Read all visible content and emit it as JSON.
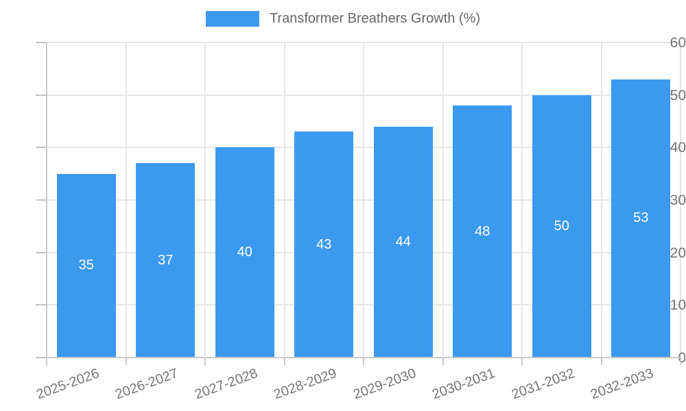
{
  "chart_data": {
    "type": "bar",
    "title": "Transformer Breathers Growth (%)",
    "categories": [
      "2025-2026",
      "2026-2027",
      "2027-2028",
      "2028-2029",
      "2029-2030",
      "2030-2031",
      "2031-2032",
      "2032-2033"
    ],
    "values": [
      35,
      37,
      40,
      43,
      44,
      48,
      50,
      53
    ],
    "xlabel": "",
    "ylabel": "",
    "ylim": [
      0,
      60
    ],
    "yticks": [
      0,
      10,
      20,
      30,
      40,
      50,
      60
    ],
    "grid": true,
    "legend_position": "top-center",
    "value_labels": "inside-center"
  },
  "legend": {
    "label": "Transformer Breathers Growth (%)"
  },
  "colors": {
    "bar": "#3b99f0",
    "value_label": "#ffffff",
    "axis_text": "#757575",
    "legend_text": "#666666",
    "gridline": "#e6e6e6",
    "axis_line": "#c9c9c9"
  }
}
